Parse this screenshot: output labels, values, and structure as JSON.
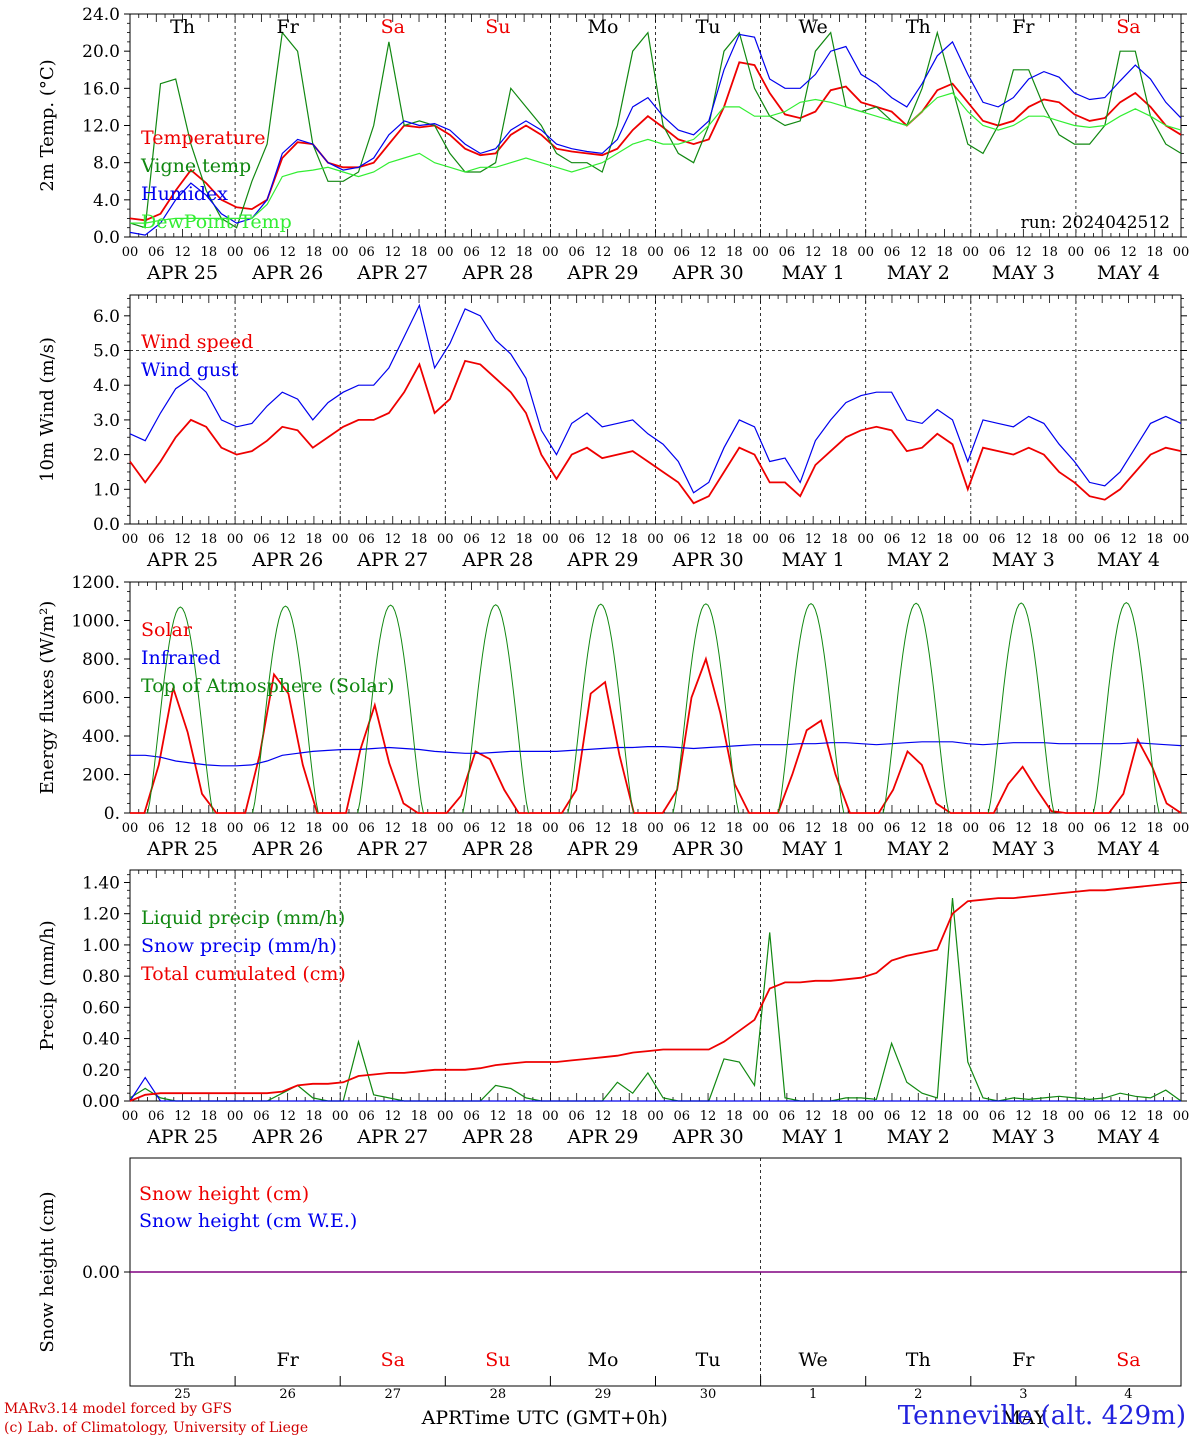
{
  "days": [
    "Th",
    "Fr",
    "Sa",
    "Su",
    "Mo",
    "Tu",
    "We",
    "Th",
    "Fr",
    "Sa"
  ],
  "weekend_days": [
    "Sa",
    "Su"
  ],
  "date_labels": [
    "APR 25",
    "APR 26",
    "APR 27",
    "APR 28",
    "APR 29",
    "APR 30",
    "MAY  1",
    "MAY  2",
    "MAY  3",
    "MAY  4"
  ],
  "hour_ticks": [
    "00",
    "06",
    "12",
    "18"
  ],
  "bottom_day_numbers": [
    "25",
    "26",
    "27",
    "28",
    "29",
    "30",
    "1",
    "2",
    "3",
    "4"
  ],
  "bottom_month_labels": [
    "APR",
    "MAY"
  ],
  "xlabel": "Time UTC (GMT+0h)",
  "footer": {
    "model": "MARv3.14 model forced by GFS",
    "lab": "(c) Lab. of Climatology, University of Liege",
    "station": "Tenneville (alt. 429m)"
  },
  "colors": {
    "red": "#ee0000",
    "green": "#118811",
    "blue": "#0000ee",
    "lightgreen": "#33ee33",
    "purple": "#800080",
    "weekend": "#ee0000"
  },
  "chart_data": [
    {
      "type": "line",
      "ylabel": "2m Temp. (°C)",
      "ylim": [
        0,
        24
      ],
      "yticks": [
        "0.0",
        "4.0",
        "8.0",
        "12.0",
        "16.0",
        "20.0",
        "24.0"
      ],
      "ref_line": 0,
      "note": "run: 2024042512",
      "series": [
        {
          "name": "Temperature",
          "color": "#ee0000",
          "values": [
            2.0,
            1.8,
            2.5,
            5.0,
            7.2,
            5.8,
            4.0,
            3.2,
            3.0,
            4.0,
            8.5,
            10.2,
            10.0,
            8.0,
            7.5,
            7.5,
            8.0,
            10.0,
            12.0,
            11.8,
            12.0,
            11.0,
            9.5,
            8.8,
            9.0,
            11.0,
            12.0,
            11.0,
            9.5,
            9.2,
            9.0,
            8.8,
            9.5,
            11.5,
            13.0,
            11.8,
            10.5,
            10.0,
            10.5,
            14.0,
            18.8,
            18.5,
            15.5,
            13.2,
            12.8,
            13.5,
            15.8,
            16.2,
            14.5,
            14.0,
            13.5,
            12.0,
            13.5,
            15.8,
            16.5,
            14.5,
            12.5,
            12.0,
            12.5,
            14.0,
            14.8,
            14.5,
            13.2,
            12.5,
            12.8,
            14.5,
            15.5,
            14.0,
            12.0,
            11.0
          ]
        },
        {
          "name": "Vigne temp",
          "color": "#118811",
          "values": [
            1.5,
            1.0,
            16.5,
            17.0,
            10.0,
            5.0,
            2.0,
            1.0,
            6.0,
            10.0,
            22.0,
            20.0,
            10.0,
            6.0,
            6.0,
            7.0,
            12.0,
            21.0,
            12.0,
            12.5,
            12.0,
            9.0,
            7.0,
            7.0,
            8.0,
            16.0,
            14.0,
            12.0,
            9.0,
            8.0,
            8.0,
            7.0,
            12.0,
            20.0,
            22.0,
            12.0,
            9.0,
            8.0,
            12.0,
            20.0,
            22.0,
            16.0,
            13.0,
            12.0,
            12.5,
            20.0,
            22.0,
            14.0,
            13.5,
            14.0,
            12.5,
            12.0,
            16.0,
            22.0,
            16.0,
            10.0,
            9.0,
            12.0,
            18.0,
            18.0,
            14.0,
            11.0,
            10.0,
            10.0,
            12.0,
            20.0,
            20.0,
            13.0,
            10.0,
            9.0
          ]
        },
        {
          "name": "Humidex",
          "color": "#0000ee",
          "values": [
            0.5,
            0.2,
            1.5,
            4.0,
            5.8,
            4.5,
            2.5,
            1.5,
            2.0,
            4.0,
            9.0,
            10.5,
            10.0,
            8.0,
            7.2,
            7.5,
            8.5,
            11.0,
            12.5,
            12.0,
            12.2,
            11.5,
            10.0,
            9.0,
            9.5,
            11.5,
            12.5,
            11.5,
            10.0,
            9.5,
            9.2,
            9.0,
            10.5,
            14.0,
            15.0,
            13.0,
            11.5,
            11.0,
            12.5,
            18.0,
            21.8,
            21.5,
            17.0,
            16.0,
            16.0,
            17.5,
            20.0,
            20.5,
            17.5,
            16.5,
            15.0,
            14.0,
            16.5,
            19.5,
            21.0,
            17.5,
            14.5,
            14.0,
            15.0,
            17.0,
            17.8,
            17.2,
            15.5,
            14.8,
            15.0,
            16.8,
            18.5,
            17.0,
            14.5,
            12.8
          ]
        },
        {
          "name": "DewPoint Temp",
          "color": "#33ee33",
          "values": [
            1.5,
            1.5,
            1.8,
            2.0,
            2.0,
            2.0,
            2.0,
            2.0,
            2.0,
            3.5,
            6.5,
            7.0,
            7.2,
            7.5,
            7.0,
            6.5,
            7.0,
            8.0,
            8.5,
            9.0,
            8.0,
            7.5,
            7.0,
            7.5,
            7.5,
            8.0,
            8.5,
            8.0,
            7.5,
            7.0,
            7.5,
            8.0,
            9.0,
            10.0,
            10.5,
            10.0,
            10.0,
            10.5,
            12.0,
            14.0,
            14.0,
            13.0,
            13.0,
            13.5,
            14.5,
            14.8,
            14.5,
            14.0,
            13.5,
            13.0,
            12.5,
            12.0,
            13.5,
            15.0,
            15.5,
            13.5,
            12.0,
            11.5,
            12.0,
            13.0,
            13.0,
            12.5,
            12.0,
            11.8,
            12.0,
            13.0,
            13.8,
            13.0,
            12.0,
            11.5
          ]
        }
      ]
    },
    {
      "type": "line",
      "ylabel": "10m Wind (m/s)",
      "ylim": [
        0,
        6.6
      ],
      "yticks": [
        "0.0",
        "1.0",
        "2.0",
        "3.0",
        "4.0",
        "5.0",
        "6.0"
      ],
      "ref_line": 5.0,
      "series": [
        {
          "name": "Wind speed",
          "color": "#ee0000",
          "values": [
            1.8,
            1.2,
            1.8,
            2.5,
            3.0,
            2.8,
            2.2,
            2.0,
            2.1,
            2.4,
            2.8,
            2.7,
            2.2,
            2.5,
            2.8,
            3.0,
            3.0,
            3.2,
            3.8,
            4.6,
            3.2,
            3.6,
            4.7,
            4.6,
            4.2,
            3.8,
            3.2,
            2.0,
            1.3,
            2.0,
            2.2,
            1.9,
            2.0,
            2.1,
            1.8,
            1.5,
            1.2,
            0.6,
            0.8,
            1.5,
            2.2,
            2.0,
            1.2,
            1.2,
            0.8,
            1.7,
            2.1,
            2.5,
            2.7,
            2.8,
            2.7,
            2.1,
            2.2,
            2.6,
            2.3,
            1.0,
            2.2,
            2.1,
            2.0,
            2.2,
            2.0,
            1.5,
            1.2,
            0.8,
            0.7,
            1.0,
            1.5,
            2.0,
            2.2,
            2.1
          ]
        },
        {
          "name": "Wind gust",
          "color": "#0000ee",
          "values": [
            2.6,
            2.4,
            3.2,
            3.9,
            4.2,
            3.8,
            3.0,
            2.8,
            2.9,
            3.4,
            3.8,
            3.6,
            3.0,
            3.5,
            3.8,
            4.0,
            4.0,
            4.5,
            5.4,
            6.3,
            4.5,
            5.2,
            6.2,
            6.0,
            5.3,
            4.9,
            4.2,
            2.7,
            2.0,
            2.9,
            3.2,
            2.8,
            2.9,
            3.0,
            2.6,
            2.3,
            1.8,
            0.9,
            1.2,
            2.2,
            3.0,
            2.8,
            1.8,
            1.9,
            1.2,
            2.4,
            3.0,
            3.5,
            3.7,
            3.8,
            3.8,
            3.0,
            2.9,
            3.3,
            3.0,
            1.8,
            3.0,
            2.9,
            2.8,
            3.1,
            2.9,
            2.3,
            1.8,
            1.2,
            1.1,
            1.5,
            2.2,
            2.9,
            3.1,
            2.9
          ]
        }
      ]
    },
    {
      "type": "line",
      "ylabel": "Energy fluxes (W/m²)",
      "ylim": [
        0,
        1200
      ],
      "yticks": [
        "0.",
        "200.",
        "400.",
        "600.",
        "800.",
        "1000.",
        "1200."
      ],
      "series": [
        {
          "name": "Solar",
          "color": "#ee0000",
          "values": [
            0,
            0,
            250,
            650,
            420,
            100,
            0,
            0,
            0,
            300,
            720,
            620,
            250,
            0,
            0,
            0,
            330,
            560,
            260,
            50,
            0,
            0,
            0,
            90,
            320,
            280,
            120,
            0,
            0,
            0,
            0,
            120,
            620,
            680,
            300,
            0,
            0,
            0,
            120,
            600,
            800,
            520,
            150,
            0,
            0,
            0,
            200,
            430,
            480,
            200,
            0,
            0,
            0,
            120,
            320,
            250,
            50,
            0,
            0,
            0,
            0,
            150,
            240,
            120,
            10,
            0,
            0,
            0,
            0,
            100,
            380,
            240,
            50,
            0
          ]
        },
        {
          "name": "Infrared",
          "color": "#0000ee",
          "values": [
            300,
            300,
            290,
            270,
            260,
            250,
            245,
            245,
            250,
            270,
            300,
            310,
            320,
            325,
            330,
            330,
            335,
            340,
            335,
            330,
            320,
            315,
            310,
            310,
            315,
            320,
            320,
            320,
            320,
            325,
            330,
            335,
            340,
            340,
            345,
            345,
            340,
            335,
            340,
            345,
            350,
            355,
            355,
            355,
            360,
            360,
            365,
            365,
            360,
            355,
            360,
            365,
            370,
            370,
            370,
            360,
            355,
            360,
            365,
            365,
            365,
            360,
            360,
            360,
            360,
            360,
            365,
            360,
            355,
            350
          ]
        },
        {
          "name": "Top of Atmosphere (Solar)",
          "color": "#118811",
          "values": [
            1070,
            1075,
            1080,
            1082,
            1085,
            1087,
            1088,
            1090,
            1091,
            1093
          ]
        }
      ]
    },
    {
      "type": "line",
      "ylabel": "Precip (mm/h)",
      "ylim": [
        0,
        1.48
      ],
      "yticks": [
        "0.00",
        "0.20",
        "0.40",
        "0.60",
        "0.80",
        "1.00",
        "1.20",
        "1.40"
      ],
      "series": [
        {
          "name": "Liquid precip (mm/h)",
          "color": "#118811",
          "values": [
            0.02,
            0.08,
            0.02,
            0.0,
            0.0,
            0.0,
            0.0,
            0.0,
            0.0,
            0.0,
            0.05,
            0.1,
            0.02,
            0.0,
            0.0,
            0.38,
            0.04,
            0.02,
            0.0,
            0.0,
            0.0,
            0.0,
            0.0,
            0.0,
            0.1,
            0.08,
            0.02,
            0.0,
            0.0,
            0.0,
            0.0,
            0.0,
            0.12,
            0.05,
            0.18,
            0.02,
            0.0,
            0.0,
            0.0,
            0.27,
            0.25,
            0.1,
            1.08,
            0.02,
            0.0,
            0.0,
            0.0,
            0.02,
            0.02,
            0.01,
            0.37,
            0.12,
            0.05,
            0.02,
            1.3,
            0.25,
            0.02,
            0.0,
            0.02,
            0.01,
            0.02,
            0.03,
            0.02,
            0.01,
            0.02,
            0.05,
            0.03,
            0.02,
            0.07,
            0.0
          ]
        },
        {
          "name": "Snow precip (mm/h)",
          "color": "#0000ee",
          "values": [
            0.0,
            0.15,
            0.0,
            0.0,
            0.0,
            0.0,
            0.0,
            0.0,
            0.0,
            0.0,
            0.0,
            0.0,
            0.0,
            0.0,
            0.0,
            0.0,
            0.0,
            0.0,
            0.0,
            0.0,
            0.0,
            0.0,
            0.0,
            0.0,
            0.0,
            0.0,
            0.0,
            0.0,
            0.0,
            0.0,
            0.0,
            0.0,
            0.0,
            0.0,
            0.0,
            0.0,
            0.0,
            0.0,
            0.0,
            0.0,
            0.0,
            0.0,
            0.0,
            0.0,
            0.0,
            0.0,
            0.0,
            0.0,
            0.0,
            0.0,
            0.0,
            0.0,
            0.0,
            0.0,
            0.0,
            0.0,
            0.0,
            0.0,
            0.0,
            0.0,
            0.0,
            0.0,
            0.0,
            0.0,
            0.0,
            0.0,
            0.0,
            0.0,
            0.0,
            0.0
          ]
        },
        {
          "name": "Total cumulated (cm)",
          "color": "#ee0000",
          "values": [
            0.0,
            0.04,
            0.05,
            0.05,
            0.05,
            0.05,
            0.05,
            0.05,
            0.05,
            0.05,
            0.06,
            0.1,
            0.11,
            0.11,
            0.12,
            0.16,
            0.17,
            0.18,
            0.18,
            0.19,
            0.2,
            0.2,
            0.2,
            0.21,
            0.23,
            0.24,
            0.25,
            0.25,
            0.25,
            0.26,
            0.27,
            0.28,
            0.29,
            0.31,
            0.32,
            0.33,
            0.33,
            0.33,
            0.33,
            0.38,
            0.45,
            0.52,
            0.72,
            0.76,
            0.76,
            0.77,
            0.77,
            0.78,
            0.79,
            0.82,
            0.9,
            0.93,
            0.95,
            0.97,
            1.2,
            1.28,
            1.29,
            1.3,
            1.3,
            1.31,
            1.32,
            1.33,
            1.34,
            1.35,
            1.35,
            1.36,
            1.37,
            1.38,
            1.39,
            1.4
          ]
        }
      ]
    },
    {
      "type": "line",
      "ylabel": "Snow height (cm)",
      "yticks": [
        "0.00"
      ],
      "series": [
        {
          "name": "Snow height (cm)",
          "color": "#ee0000",
          "values": [
            0,
            0
          ]
        },
        {
          "name": "Snow height (cm W.E.)",
          "color": "#0000ee",
          "values": [
            0,
            0
          ]
        }
      ]
    }
  ]
}
